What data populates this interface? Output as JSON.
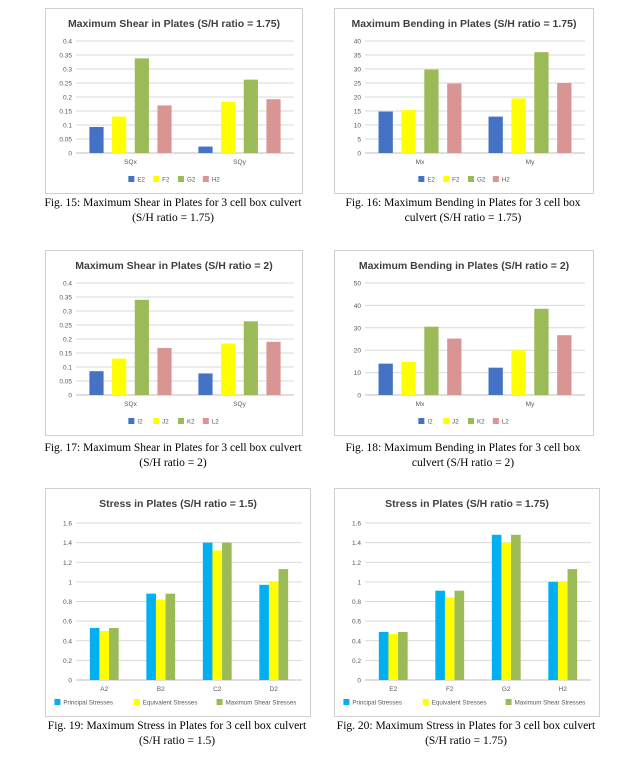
{
  "figures": [
    {
      "caption_line1": "Fig. 15: Maximum Shear in Plates for 3 cell box culvert",
      "caption_line2": "(S/H ratio = 1.75)",
      "chart_data": {
        "type": "bar",
        "title": "Maximum Shear in Plates (S/H ratio = 1.75)",
        "categories": [
          "SQx",
          "SQy"
        ],
        "y_ticks": [
          "0",
          "0.05",
          "0.1",
          "0.15",
          "0.2",
          "0.25",
          "0.3",
          "0.35",
          "0.4"
        ],
        "ylim": [
          0,
          0.4
        ],
        "grid": true,
        "legend_position": "bottom",
        "series": [
          {
            "name": "E2",
            "color": "#4472C4",
            "values": [
              0.093,
              0.023
            ]
          },
          {
            "name": "F2",
            "color": "#FFFF00",
            "values": [
              0.13,
              0.183
            ]
          },
          {
            "name": "G2",
            "color": "#9BBB59",
            "values": [
              0.338,
              0.262
            ]
          },
          {
            "name": "H2",
            "color": "#D99594",
            "values": [
              0.17,
              0.192
            ]
          }
        ]
      }
    },
    {
      "caption_line1": "Fig. 16: Maximum Bending in Plates for 3 cell box",
      "caption_line2": "culvert (S/H ratio = 1.75)",
      "chart_data": {
        "type": "bar",
        "title": "Maximum Bending in Plates (S/H ratio = 1.75)",
        "categories": [
          "Mx",
          "My"
        ],
        "y_ticks": [
          "0",
          "5",
          "10",
          "15",
          "20",
          "25",
          "30",
          "35",
          "40"
        ],
        "ylim": [
          0,
          40
        ],
        "grid": true,
        "legend_position": "bottom",
        "series": [
          {
            "name": "E2",
            "color": "#4472C4",
            "values": [
              14.8,
              13
            ]
          },
          {
            "name": "F2",
            "color": "#FFFF00",
            "values": [
              15.3,
              19.5
            ]
          },
          {
            "name": "G2",
            "color": "#9BBB59",
            "values": [
              29.8,
              36
            ]
          },
          {
            "name": "H2",
            "color": "#D99594",
            "values": [
              24.8,
              25
            ]
          }
        ]
      }
    },
    {
      "caption_line1": "Fig. 17: Maximum Shear in Plates for 3 cell box culvert",
      "caption_line2": "(S/H ratio = 2)",
      "chart_data": {
        "type": "bar",
        "title": "Maximum Shear in Plates (S/H ratio = 2)",
        "categories": [
          "SQx",
          "SQy"
        ],
        "y_ticks": [
          "0",
          "0.05",
          "0.1",
          "0.15",
          "0.2",
          "0.25",
          "0.3",
          "0.35",
          "0.4"
        ],
        "ylim": [
          0,
          0.4
        ],
        "grid": true,
        "legend_position": "bottom",
        "series": [
          {
            "name": "I2",
            "color": "#4472C4",
            "values": [
              0.085,
              0.077
            ]
          },
          {
            "name": "J2",
            "color": "#FFFF00",
            "values": [
              0.13,
              0.184
            ]
          },
          {
            "name": "K2",
            "color": "#9BBB59",
            "values": [
              0.34,
              0.263
            ]
          },
          {
            "name": "L2",
            "color": "#D99594",
            "values": [
              0.168,
              0.19
            ]
          }
        ]
      }
    },
    {
      "caption_line1": "Fig. 18: Maximum Bending in Plates for 3 cell box",
      "caption_line2": "culvert (S/H ratio = 2)",
      "chart_data": {
        "type": "bar",
        "title": "Maximum Bending in Plates (S/H ratio = 2)",
        "categories": [
          "Mx",
          "My"
        ],
        "y_ticks": [
          "0",
          "10",
          "20",
          "30",
          "40",
          "50"
        ],
        "ylim": [
          0,
          50
        ],
        "grid": true,
        "legend_position": "bottom",
        "series": [
          {
            "name": "I2",
            "color": "#4472C4",
            "values": [
              14,
              12.2
            ]
          },
          {
            "name": "J2",
            "color": "#FFFF00",
            "values": [
              14.8,
              20
            ]
          },
          {
            "name": "K2",
            "color": "#9BBB59",
            "values": [
              30.5,
              38.5
            ]
          },
          {
            "name": "L2",
            "color": "#D99594",
            "values": [
              25.2,
              26.7
            ]
          }
        ]
      }
    },
    {
      "caption_line1": "Fig. 19: Maximum Stress in Plates for 3 cell box culvert",
      "caption_line2": "(S/H ratio = 1.5)",
      "chart_data": {
        "type": "bar",
        "title": "Stress in Plates (S/H ratio = 1.5)",
        "categories": [
          "A2",
          "B2",
          "C2",
          "D2"
        ],
        "y_ticks": [
          "0",
          "0.2",
          "0.4",
          "0.6",
          "0.8",
          "1",
          "1.2",
          "1.4",
          "1.6"
        ],
        "ylim": [
          0,
          1.6
        ],
        "grid": true,
        "legend_position": "bottom",
        "series": [
          {
            "name": "Principal Stresses",
            "color": "#00B0F0",
            "values": [
              0.53,
              0.88,
              1.4,
              0.97
            ]
          },
          {
            "name": "Equivalent Stresses",
            "color": "#FFFF00",
            "values": [
              0.5,
              0.82,
              1.32,
              1.0
            ]
          },
          {
            "name": "Maximum Shear Stresses",
            "color": "#9BBB59",
            "values": [
              0.53,
              0.88,
              1.4,
              1.13
            ]
          }
        ]
      }
    },
    {
      "caption_line1": "Fig. 20: Maximum Stress in Plates for 3 cell box culvert",
      "caption_line2": "(S/H ratio = 1.75)",
      "chart_data": {
        "type": "bar",
        "title": "Stress in Plates (S/H ratio = 1.75)",
        "categories": [
          "E2",
          "F2",
          "G2",
          "H2"
        ],
        "y_ticks": [
          "0",
          "0.2",
          "0.4",
          "0.6",
          "0.8",
          "1",
          "1.2",
          "1.4",
          "1.6"
        ],
        "ylim": [
          0,
          1.6
        ],
        "grid": true,
        "legend_position": "bottom",
        "series": [
          {
            "name": "Principal Stresses",
            "color": "#00B0F0",
            "values": [
              0.49,
              0.91,
              1.48,
              1.0
            ]
          },
          {
            "name": "Equivalent Stresses",
            "color": "#FFFF00",
            "values": [
              0.47,
              0.84,
              1.4,
              1.0
            ]
          },
          {
            "name": "Maximum Shear Stresses",
            "color": "#9BBB59",
            "values": [
              0.49,
              0.91,
              1.48,
              1.13
            ]
          }
        ]
      }
    }
  ]
}
